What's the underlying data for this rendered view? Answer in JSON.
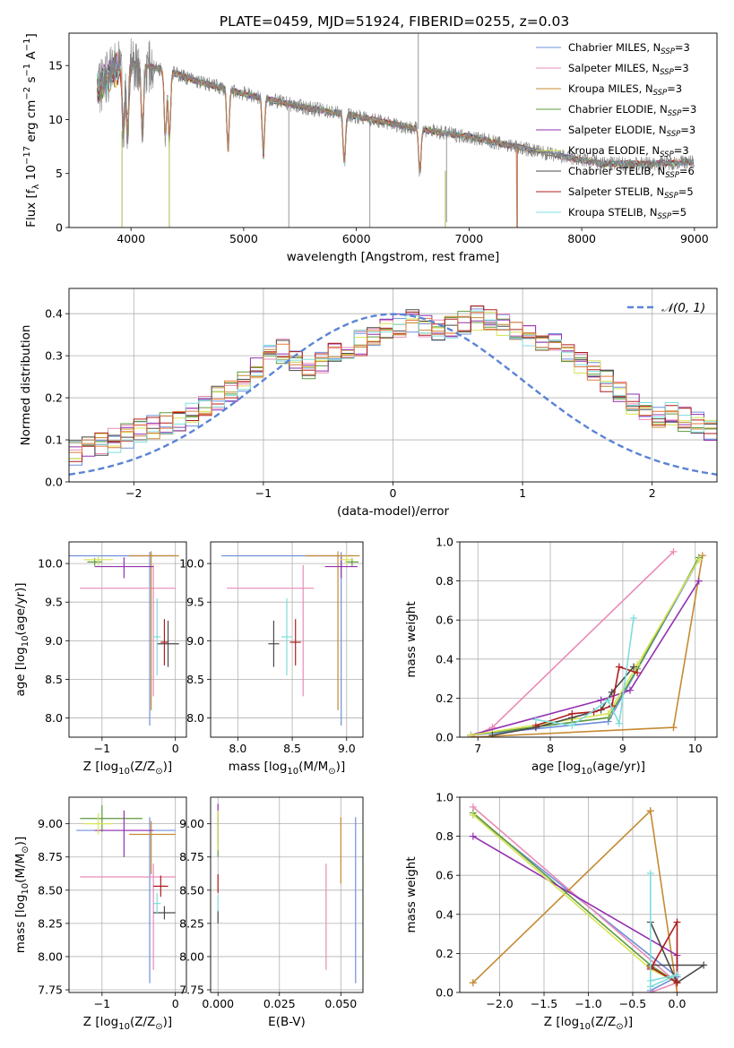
{
  "figure": {
    "title": "PLATE=0459, MJD=51924, FIBERID=0255, z=0.03"
  },
  "models": [
    {
      "name": "Chabrier MILES, N_SSP=3",
      "color": "#6f8fdc"
    },
    {
      "name": "Salpeter MILES, N_SSP=3",
      "color": "#e98bb7"
    },
    {
      "name": "Kroupa MILES, N_SSP=3",
      "color": "#c58a33"
    },
    {
      "name": "Chabrier ELODIE, N_SSP=3",
      "color": "#5e9a3c"
    },
    {
      "name": "Salpeter ELODIE, N_SSP=3",
      "color": "#9330b0"
    },
    {
      "name": "Kroupa ELODIE, N_SSP=3",
      "color": "#d6e455"
    },
    {
      "name": "Chabrier STELIB, N_SSP=6",
      "color": "#4a4a4a"
    },
    {
      "name": "Salpeter STELIB, N_SSP=5",
      "color": "#b01d1d"
    },
    {
      "name": "Kroupa STELIB, N_SSP=5",
      "color": "#7fdddd"
    }
  ],
  "chart_data": [
    {
      "id": "spectrum",
      "type": "line",
      "xlabel": "wavelength [Angstrom, rest frame]",
      "ylabel": "Flux [f_λ 10^-17 erg cm^-2 s^-1 A^-1]",
      "xlim": [
        3450,
        9200
      ],
      "ylim": [
        0,
        18
      ],
      "xticks": [
        4000,
        5000,
        6000,
        7000,
        8000,
        9000
      ],
      "yticks": [
        0,
        5,
        10,
        15
      ],
      "grid": false,
      "legend": "upper right",
      "data_color": "#808080",
      "model_color": "#e07a3f",
      "continuum": [
        [
          3700,
          12.8
        ],
        [
          3850,
          14.6
        ],
        [
          4000,
          15.2
        ],
        [
          4300,
          14.6
        ],
        [
          4600,
          13.5
        ],
        [
          5000,
          12.4
        ],
        [
          5500,
          11.2
        ],
        [
          6000,
          10.3
        ],
        [
          6500,
          9.2
        ],
        [
          7000,
          8.4
        ],
        [
          7400,
          7.5
        ],
        [
          7800,
          6.6
        ],
        [
          8200,
          5.9
        ],
        [
          8600,
          5.9
        ],
        [
          9000,
          6.1
        ]
      ],
      "absorption_lines": [
        3934,
        3969,
        4102,
        4305,
        4341,
        4861,
        5175,
        5893,
        6563
      ],
      "spikes": [
        [
          5400,
          0
        ],
        [
          6120,
          0
        ],
        [
          6550,
          18
        ],
        [
          6800,
          0.5
        ],
        [
          7430,
          0
        ]
      ]
    },
    {
      "id": "residuals",
      "type": "histogram",
      "xlabel": "(data-model)/error",
      "ylabel": "Normed distribution",
      "xlim": [
        -2.5,
        2.5
      ],
      "ylim": [
        0,
        0.46
      ],
      "xticks": [
        -2,
        -1,
        0,
        1,
        2
      ],
      "yticks": [
        0.0,
        0.1,
        0.2,
        0.3,
        0.4
      ],
      "grid": true,
      "legend": "upper right",
      "reference": {
        "name": "𝒩(0, 1)",
        "mean": 0,
        "sigma": 1,
        "color": "#5b84d4"
      },
      "bin_width": 0.1,
      "bin_start": -2.5,
      "base_profile": [
        0.07,
        0.08,
        0.09,
        0.1,
        0.11,
        0.12,
        0.13,
        0.14,
        0.15,
        0.16,
        0.18,
        0.2,
        0.22,
        0.24,
        0.27,
        0.3,
        0.31,
        0.29,
        0.27,
        0.28,
        0.31,
        0.32,
        0.33,
        0.34,
        0.36,
        0.37,
        0.38,
        0.37,
        0.36,
        0.37,
        0.38,
        0.39,
        0.38,
        0.37,
        0.36,
        0.35,
        0.34,
        0.33,
        0.3,
        0.28,
        0.26,
        0.24,
        0.22,
        0.19,
        0.17,
        0.15,
        0.16,
        0.15,
        0.14,
        0.12,
        0.1,
        0.09,
        0.08,
        0.09,
        0.08,
        0.07,
        0.06,
        0.06,
        0.05,
        0.05,
        0.04,
        0.04,
        0.04,
        0.04,
        0.03,
        0.03,
        0.03,
        0.03,
        0.03,
        0.02,
        0.02,
        0.02,
        0.02,
        0.02,
        0.02,
        0.02,
        0.02,
        0.02,
        0.02,
        0.02,
        0.02,
        0.02,
        0.02,
        0.02,
        0.02,
        0.02,
        0.02,
        0.02,
        0.02,
        0.02,
        0.02,
        0.02,
        0.02,
        0.02,
        0.02,
        0.02,
        0.02,
        0.02,
        0.02,
        0.02
      ]
    },
    {
      "id": "z-vs-age",
      "type": "errorbar",
      "xlabel": "Z [log10(Z/Z⊙)]",
      "ylabel": "age  [log10(age/yr)]",
      "xlim": [
        -1.45,
        0.15
      ],
      "ylim": [
        7.75,
        10.28
      ],
      "xticks": [
        -1,
        0
      ],
      "yticks": [
        8.0,
        8.5,
        9.0,
        9.5,
        10.0
      ],
      "grid": true,
      "points": [
        {
          "model": 0,
          "x": -0.35,
          "y": 10.1,
          "xerr": [
            1.1,
            0.35
          ],
          "yerr": [
            2.2,
            0.05
          ]
        },
        {
          "model": 1,
          "x": -0.3,
          "y": 9.68,
          "xerr": [
            1.0,
            0.3
          ],
          "yerr": [
            1.4,
            0.3
          ]
        },
        {
          "model": 2,
          "x": -0.33,
          "y": 10.1,
          "xerr": [
            0.3,
            0.38
          ],
          "yerr": [
            2.0,
            0.06
          ]
        },
        {
          "model": 3,
          "x": -1.1,
          "y": 10.02,
          "xerr": [
            0.1,
            0.1
          ],
          "yerr": [
            0.05,
            0.05
          ]
        },
        {
          "model": 4,
          "x": -0.7,
          "y": 9.96,
          "xerr": [
            0.4,
            0.4
          ],
          "yerr": [
            0.15,
            0.12
          ]
        },
        {
          "model": 5,
          "x": -1.05,
          "y": 10.05,
          "xerr": [
            0.2,
            0.2
          ],
          "yerr": [
            0.08,
            0.05
          ]
        },
        {
          "model": 6,
          "x": -0.1,
          "y": 8.96,
          "xerr": [
            0.15,
            0.15
          ],
          "yerr": [
            0.3,
            0.3
          ]
        },
        {
          "model": 7,
          "x": -0.15,
          "y": 8.98,
          "xerr": [
            0.05,
            0.05
          ],
          "yerr": [
            0.3,
            0.3
          ]
        },
        {
          "model": 8,
          "x": -0.25,
          "y": 9.05,
          "xerr": [
            0.05,
            0.05
          ],
          "yerr": [
            0.5,
            0.5
          ]
        }
      ]
    },
    {
      "id": "mass-vs-age",
      "type": "errorbar",
      "xlabel": "mass [log10(M/M⊙)]",
      "ylabel": "",
      "xlim": [
        7.75,
        9.15
      ],
      "ylim": [
        7.75,
        10.28
      ],
      "xticks": [
        8.0,
        8.5,
        9.0
      ],
      "yticks": [
        8.0,
        8.5,
        9.0,
        9.5,
        10.0
      ],
      "grid": true,
      "points": [
        {
          "model": 0,
          "x": 8.95,
          "y": 10.1,
          "xerr": [
            1.1,
            0.1
          ],
          "yerr": [
            2.2,
            0.05
          ]
        },
        {
          "model": 1,
          "x": 8.6,
          "y": 9.68,
          "xerr": [
            0.7,
            0.1
          ],
          "yerr": [
            1.4,
            0.3
          ]
        },
        {
          "model": 2,
          "x": 8.92,
          "y": 10.1,
          "xerr": [
            0.3,
            0.2
          ],
          "yerr": [
            2.0,
            0.06
          ]
        },
        {
          "model": 3,
          "x": 9.05,
          "y": 10.02,
          "xerr": [
            0.06,
            0.06
          ],
          "yerr": [
            0.05,
            0.05
          ]
        },
        {
          "model": 4,
          "x": 8.95,
          "y": 9.96,
          "xerr": [
            0.15,
            0.15
          ],
          "yerr": [
            0.15,
            0.12
          ]
        },
        {
          "model": 5,
          "x": 9.0,
          "y": 10.05,
          "xerr": [
            0.06,
            0.06
          ],
          "yerr": [
            0.08,
            0.05
          ]
        },
        {
          "model": 6,
          "x": 8.33,
          "y": 8.96,
          "xerr": [
            0.05,
            0.05
          ],
          "yerr": [
            0.3,
            0.3
          ]
        },
        {
          "model": 7,
          "x": 8.53,
          "y": 8.98,
          "xerr": [
            0.05,
            0.05
          ],
          "yerr": [
            0.3,
            0.3
          ]
        },
        {
          "model": 8,
          "x": 8.45,
          "y": 9.05,
          "xerr": [
            0.05,
            0.05
          ],
          "yerr": [
            0.5,
            0.5
          ]
        }
      ]
    },
    {
      "id": "weight-vs-age",
      "type": "line",
      "xlabel": "age  [log10(age/yr)]",
      "ylabel": "mass weight",
      "xlim": [
        6.75,
        10.3
      ],
      "ylim": [
        0,
        1.0
      ],
      "xticks": [
        7,
        8,
        9,
        10
      ],
      "yticks": [
        0.0,
        0.2,
        0.4,
        0.6,
        0.8,
        1.0
      ],
      "grid": true,
      "series": [
        {
          "model": 0,
          "x": [
            6.9,
            8.8,
            10.05
          ],
          "y": [
            0.01,
            0.08,
            0.91
          ]
        },
        {
          "model": 1,
          "x": [
            6.9,
            7.2,
            9.7
          ],
          "y": [
            0.0,
            0.05,
            0.95
          ]
        },
        {
          "model": 2,
          "x": [
            6.9,
            9.7,
            10.1,
            9.7,
            6.9
          ],
          "y": [
            0.0,
            0.05,
            0.93,
            0.05,
            0.0
          ]
        },
        {
          "model": 3,
          "x": [
            6.9,
            8.8,
            9.2,
            10.05
          ],
          "y": [
            0.01,
            0.1,
            0.35,
            0.92
          ]
        },
        {
          "model": 4,
          "x": [
            6.9,
            8.7,
            9.1,
            10.05
          ],
          "y": [
            0.01,
            0.19,
            0.24,
            0.8
          ]
        },
        {
          "model": 5,
          "x": [
            6.9,
            8.8,
            9.2,
            10.05
          ],
          "y": [
            0.01,
            0.12,
            0.37,
            0.91
          ]
        },
        {
          "model": 6,
          "x": [
            7.2,
            7.8,
            8.3,
            8.7,
            8.85,
            9.15
          ],
          "y": [
            0.01,
            0.05,
            0.1,
            0.14,
            0.23,
            0.36
          ]
        },
        {
          "model": 7,
          "x": [
            7.8,
            8.3,
            8.6,
            8.85,
            8.95,
            9.2
          ],
          "y": [
            0.06,
            0.12,
            0.13,
            0.16,
            0.36,
            0.33
          ]
        },
        {
          "model": 8,
          "x": [
            7.8,
            8.3,
            8.8,
            8.95,
            9.15
          ],
          "y": [
            0.09,
            0.06,
            0.19,
            0.07,
            0.61
          ]
        }
      ]
    },
    {
      "id": "z-vs-mass",
      "type": "errorbar",
      "xlabel": "Z [log10(Z/Z⊙)]",
      "ylabel": "mass [log10(M/M⊙)]",
      "xlim": [
        -1.45,
        0.15
      ],
      "ylim": [
        7.73,
        9.2
      ],
      "xticks": [
        -1,
        0
      ],
      "yticks": [
        7.75,
        8.0,
        8.25,
        8.5,
        8.75,
        9.0
      ],
      "grid": true,
      "points": [
        {
          "model": 0,
          "x": -0.35,
          "y": 8.95,
          "xerr": [
            1.0,
            0.35
          ],
          "yerr": [
            1.15,
            0.1
          ]
        },
        {
          "model": 1,
          "x": -0.3,
          "y": 8.6,
          "xerr": [
            1.0,
            0.3
          ],
          "yerr": [
            0.7,
            0.1
          ]
        },
        {
          "model": 2,
          "x": -0.33,
          "y": 8.92,
          "xerr": [
            0.3,
            0.33
          ],
          "yerr": [
            0.3,
            0.1
          ]
        },
        {
          "model": 3,
          "x": -1.0,
          "y": 9.04,
          "xerr": [
            0.3,
            0.55
          ],
          "yerr": [
            0.1,
            0.1
          ]
        },
        {
          "model": 4,
          "x": -0.7,
          "y": 8.95,
          "xerr": [
            0.4,
            0.4
          ],
          "yerr": [
            0.2,
            0.15
          ]
        },
        {
          "model": 5,
          "x": -1.05,
          "y": 9.0,
          "xerr": [
            0.2,
            0.2
          ],
          "yerr": [
            0.08,
            0.08
          ]
        },
        {
          "model": 6,
          "x": -0.15,
          "y": 8.33,
          "xerr": [
            0.15,
            0.15
          ],
          "yerr": [
            0.05,
            0.05
          ]
        },
        {
          "model": 7,
          "x": -0.2,
          "y": 8.53,
          "xerr": [
            0.1,
            0.1
          ],
          "yerr": [
            0.08,
            0.08
          ]
        },
        {
          "model": 8,
          "x": -0.25,
          "y": 8.4,
          "xerr": [
            0.05,
            0.05
          ],
          "yerr": [
            0.08,
            0.08
          ]
        }
      ]
    },
    {
      "id": "ebv-vs-mass",
      "type": "errorbar",
      "xlabel": "E(B-V)",
      "ylabel": "",
      "xlim": [
        -0.003,
        0.059
      ],
      "ylim": [
        7.73,
        9.2
      ],
      "xticks": [
        0.0,
        0.025,
        0.05
      ],
      "xtick_labels": [
        "0.000",
        "0.025",
        "0.050"
      ],
      "yticks": [
        7.75,
        8.0,
        8.25,
        8.5,
        8.75,
        9.0
      ],
      "grid": true,
      "points": [
        {
          "model": 0,
          "x": 0.056,
          "y": 8.4,
          "xerr": [
            0,
            0
          ],
          "yerr": [
            0.6,
            0.65
          ]
        },
        {
          "model": 1,
          "x": 0.044,
          "y": 8.3,
          "xerr": [
            0,
            0
          ],
          "yerr": [
            0.4,
            0.4
          ]
        },
        {
          "model": 2,
          "x": 0.05,
          "y": 8.8,
          "xerr": [
            0,
            0
          ],
          "yerr": [
            0.25,
            0.25
          ]
        },
        {
          "model": 3,
          "x": 0.0,
          "y": 8.9,
          "xerr": [
            0,
            0
          ],
          "yerr": [
            0.15,
            0.15
          ]
        },
        {
          "model": 4,
          "x": 0.0,
          "y": 9.0,
          "xerr": [
            0,
            0
          ],
          "yerr": [
            0.15,
            0.15
          ]
        },
        {
          "model": 5,
          "x": 0.0,
          "y": 8.95,
          "xerr": [
            0,
            0
          ],
          "yerr": [
            0.15,
            0.15
          ]
        },
        {
          "model": 6,
          "x": 0.0,
          "y": 8.3,
          "xerr": [
            0,
            0
          ],
          "yerr": [
            0.05,
            0.05
          ]
        },
        {
          "model": 7,
          "x": 0.0,
          "y": 8.55,
          "xerr": [
            0,
            0
          ],
          "yerr": [
            0.07,
            0.07
          ]
        },
        {
          "model": 8,
          "x": 0.0,
          "y": 8.4,
          "xerr": [
            0,
            0
          ],
          "yerr": [
            0.06,
            0.06
          ]
        }
      ]
    },
    {
      "id": "weight-vs-z",
      "type": "line",
      "xlabel": "Z [log10(Z/Z⊙)]",
      "ylabel": "mass weight",
      "xlim": [
        -2.45,
        0.45
      ],
      "ylim": [
        0,
        1.0
      ],
      "xticks": [
        -2.0,
        -1.5,
        -1.0,
        -0.5,
        0.0
      ],
      "yticks": [
        0.0,
        0.2,
        0.4,
        0.6,
        0.8,
        1.0
      ],
      "grid": true,
      "series": [
        {
          "model": 0,
          "x": [
            -2.3,
            0.0,
            -0.3
          ],
          "y": [
            0.91,
            0.08,
            0.01
          ]
        },
        {
          "model": 1,
          "x": [
            -2.3,
            0.0,
            -0.3
          ],
          "y": [
            0.95,
            0.05,
            0.0
          ]
        },
        {
          "model": 2,
          "x": [
            -2.3,
            -0.3,
            0.0,
            -0.3,
            -2.3
          ],
          "y": [
            0.05,
            0.93,
            0.0,
            0.93,
            0.05
          ]
        },
        {
          "model": 3,
          "x": [
            -2.3,
            -0.3,
            0.0
          ],
          "y": [
            0.92,
            0.14,
            0.05
          ]
        },
        {
          "model": 4,
          "x": [
            -2.3,
            0.0,
            0.0
          ],
          "y": [
            0.8,
            0.19,
            0.05
          ]
        },
        {
          "model": 5,
          "x": [
            -2.3,
            -0.3,
            0.0
          ],
          "y": [
            0.91,
            0.12,
            0.05
          ]
        },
        {
          "model": 6,
          "x": [
            -0.3,
            0.0,
            0.3,
            -0.3
          ],
          "y": [
            0.36,
            0.05,
            0.14,
            0.14
          ]
        },
        {
          "model": 7,
          "x": [
            -0.3,
            0.0,
            0.0,
            -0.3
          ],
          "y": [
            0.12,
            0.36,
            0.05,
            0.13
          ]
        },
        {
          "model": 8,
          "x": [
            -0.3,
            -0.3,
            0.0,
            -0.3
          ],
          "y": [
            0.61,
            0.03,
            0.09,
            0.06
          ]
        }
      ]
    }
  ]
}
